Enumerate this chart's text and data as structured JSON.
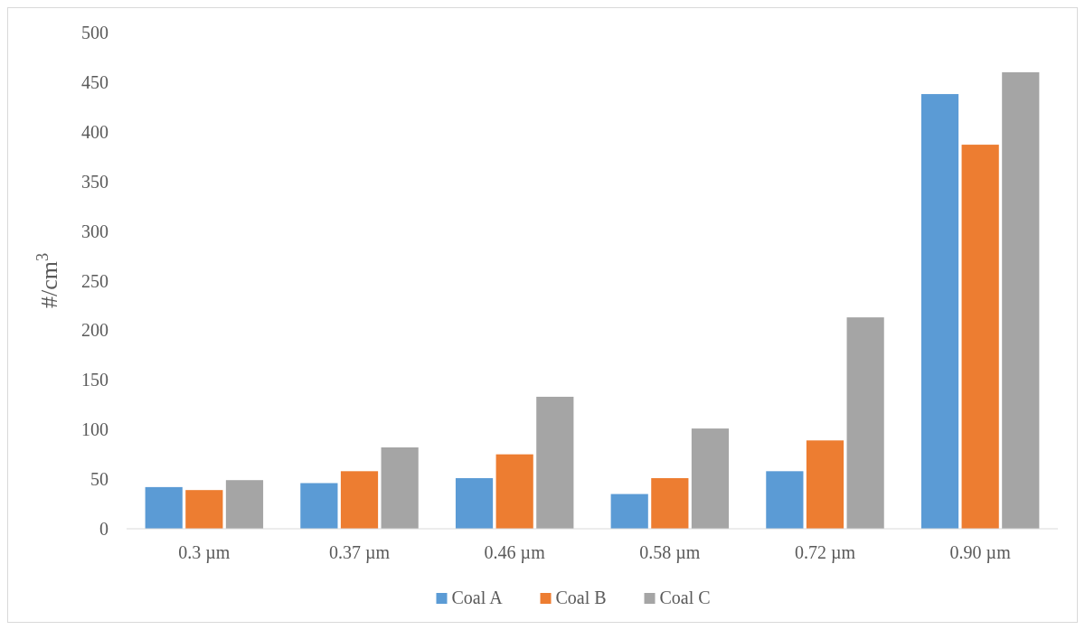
{
  "chart_data": {
    "type": "bar",
    "ylabel": "#/cm$^{3}$",
    "categories": [
      "0.3 µm",
      "0.37 µm",
      "0.46 µm",
      "0.58 µm",
      "0.72 µm",
      "0.90 µm"
    ],
    "series": [
      {
        "name": "Coal A",
        "color": "#5b9bd5",
        "values": [
          42,
          46,
          51,
          35,
          58,
          438
        ]
      },
      {
        "name": "Coal B",
        "color": "#ed7d31",
        "values": [
          39,
          58,
          75,
          51,
          89,
          387
        ]
      },
      {
        "name": "Coal C",
        "color": "#a5a5a5",
        "values": [
          49,
          82,
          133,
          101,
          213,
          460
        ]
      }
    ],
    "ylim": [
      0,
      500
    ],
    "yticks": [
      0,
      50,
      100,
      150,
      200,
      250,
      300,
      350,
      400,
      450,
      500
    ],
    "grid": false,
    "legend": "bottom"
  }
}
